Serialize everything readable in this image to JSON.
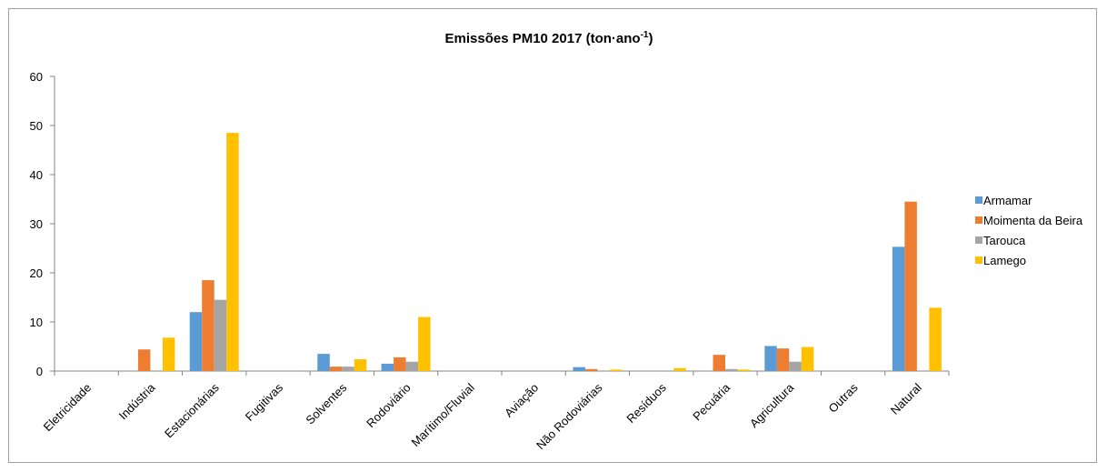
{
  "chart_data": {
    "type": "bar",
    "title": "Emissões PM10 2017 (ton·ano",
    "title_superscript": "-1",
    "title_suffix": ")",
    "xlabel": "",
    "ylabel": "",
    "ylim": [
      0,
      60
    ],
    "yticks": [
      0,
      10,
      20,
      30,
      40,
      50,
      60
    ],
    "grid": false,
    "legend_position": "right",
    "categories": [
      "Eletricidade",
      "Indústria",
      "Estacionárias",
      "Fugitivas",
      "Solventes",
      "Rodoviário",
      "Marítimo/Fluvial",
      "Aviação",
      "Não Rodoviárias",
      "Resíduos",
      "Pecuária",
      "Agricultura",
      "Outras",
      "Natural"
    ],
    "series": [
      {
        "name": "Armamar",
        "color": "#5b9bd5",
        "values": [
          0,
          0,
          12.0,
          0,
          3.5,
          1.5,
          0,
          0,
          0.8,
          0,
          0,
          5.1,
          0,
          25.3
        ]
      },
      {
        "name": "Moimenta da Beira",
        "color": "#ed7d31",
        "values": [
          0,
          4.4,
          18.5,
          0,
          0.9,
          2.8,
          0,
          0,
          0.4,
          0,
          3.3,
          4.6,
          0,
          34.5
        ]
      },
      {
        "name": "Tarouca",
        "color": "#a5a5a5",
        "values": [
          0,
          0,
          14.5,
          0,
          0.9,
          1.9,
          0,
          0,
          0,
          0,
          0.4,
          1.9,
          0,
          0
        ]
      },
      {
        "name": "Lamego",
        "color": "#ffc000",
        "values": [
          0,
          6.8,
          48.5,
          0,
          2.4,
          11.0,
          0,
          0,
          0.3,
          0.6,
          0.3,
          4.9,
          0,
          12.9
        ]
      }
    ]
  }
}
